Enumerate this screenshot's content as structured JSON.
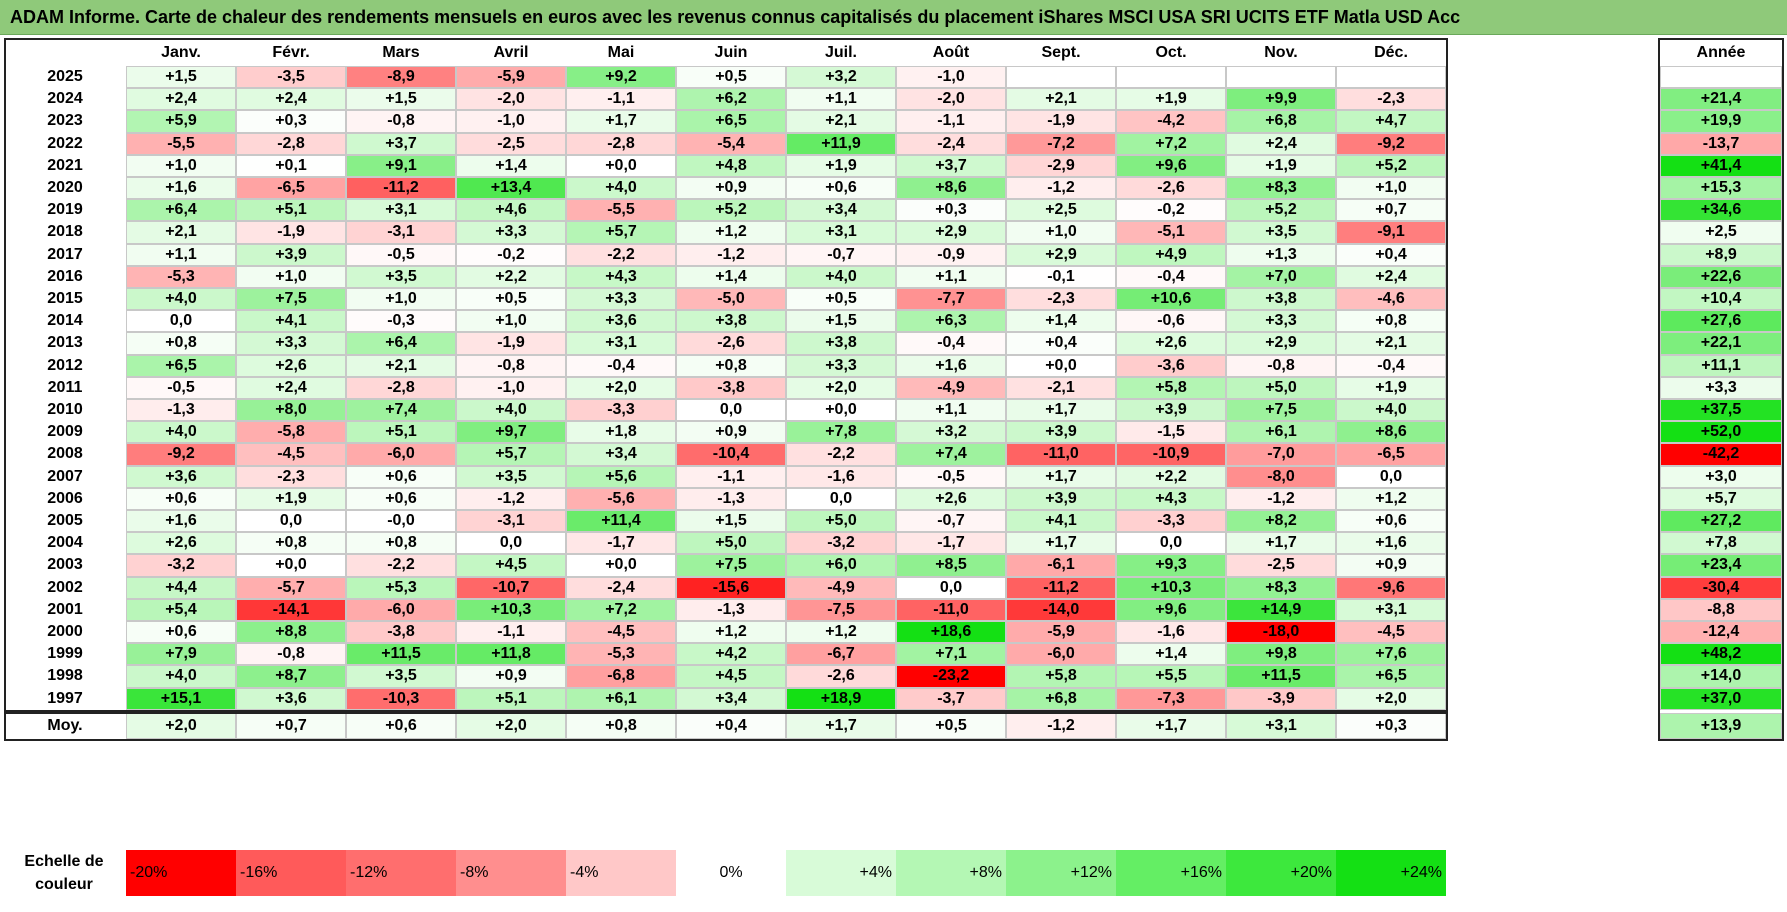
{
  "title": "ADAM Informe. Carte de chaleur des rendements mensuels en euros avec les revenus connus capitalisés du placement iShares MSCI USA SRI UCITS ETF Matla USD Acc",
  "chart_data": {
    "type": "heatmap",
    "title": "ADAM Informe. Carte de chaleur des rendements mensuels en euros avec les revenus connus capitalisés du placement iShares MSCI USA SRI UCITS ETF Matla USD Acc",
    "columns": [
      "Janv.",
      "Févr.",
      "Mars",
      "Avril",
      "Mai",
      "Juin",
      "Juil.",
      "Août",
      "Sept.",
      "Oct.",
      "Nov.",
      "Déc."
    ],
    "annual_header": "Année",
    "average_label": "Moy.",
    "rows": [
      {
        "year": "2025",
        "months": [
          "+1,5",
          "-3,5",
          "-8,9",
          "-5,9",
          "+9,2",
          "+0,5",
          "+3,2",
          "-1,0",
          "",
          "",
          "",
          ""
        ],
        "annual": ""
      },
      {
        "year": "2024",
        "months": [
          "+2,4",
          "+2,4",
          "+1,5",
          "-2,0",
          "-1,1",
          "+6,2",
          "+1,1",
          "-2,0",
          "+2,1",
          "+1,9",
          "+9,9",
          "-2,3"
        ],
        "annual": "+21,4"
      },
      {
        "year": "2023",
        "months": [
          "+5,9",
          "+0,3",
          "-0,8",
          "-1,0",
          "+1,7",
          "+6,5",
          "+2,1",
          "-1,1",
          "-1,9",
          "-4,2",
          "+6,8",
          "+4,7"
        ],
        "annual": "+19,9"
      },
      {
        "year": "2022",
        "months": [
          "-5,5",
          "-2,8",
          "+3,7",
          "-2,5",
          "-2,8",
          "-5,4",
          "+11,9",
          "-2,4",
          "-7,2",
          "+7,2",
          "+2,4",
          "-9,2"
        ],
        "annual": "-13,7"
      },
      {
        "year": "2021",
        "months": [
          "+1,0",
          "+0,1",
          "+9,1",
          "+1,4",
          "+0,0",
          "+4,8",
          "+1,9",
          "+3,7",
          "-2,9",
          "+9,6",
          "+1,9",
          "+5,2"
        ],
        "annual": "+41,4"
      },
      {
        "year": "2020",
        "months": [
          "+1,6",
          "-6,5",
          "-11,2",
          "+13,4",
          "+4,0",
          "+0,9",
          "+0,6",
          "+8,6",
          "-1,2",
          "-2,6",
          "+8,3",
          "+1,0"
        ],
        "annual": "+15,3"
      },
      {
        "year": "2019",
        "months": [
          "+6,4",
          "+5,1",
          "+3,1",
          "+4,6",
          "-5,5",
          "+5,2",
          "+3,4",
          "+0,3",
          "+2,5",
          "-0,2",
          "+5,2",
          "+0,7"
        ],
        "annual": "+34,6"
      },
      {
        "year": "2018",
        "months": [
          "+2,1",
          "-1,9",
          "-3,1",
          "+3,3",
          "+5,7",
          "+1,2",
          "+3,1",
          "+2,9",
          "+1,0",
          "-5,1",
          "+3,5",
          "-9,1"
        ],
        "annual": "+2,5"
      },
      {
        "year": "2017",
        "months": [
          "+1,1",
          "+3,9",
          "-0,5",
          "-0,2",
          "-2,2",
          "-1,2",
          "-0,7",
          "-0,9",
          "+2,9",
          "+4,9",
          "+1,3",
          "+0,4"
        ],
        "annual": "+8,9"
      },
      {
        "year": "2016",
        "months": [
          "-5,3",
          "+1,0",
          "+3,5",
          "+2,2",
          "+4,3",
          "+1,4",
          "+4,0",
          "+1,1",
          "-0,1",
          "-0,4",
          "+7,0",
          "+2,4"
        ],
        "annual": "+22,6"
      },
      {
        "year": "2015",
        "months": [
          "+4,0",
          "+7,5",
          "+1,0",
          "+0,5",
          "+3,3",
          "-5,0",
          "+0,5",
          "-7,7",
          "-2,3",
          "+10,6",
          "+3,8",
          "-4,6"
        ],
        "annual": "+10,4"
      },
      {
        "year": "2014",
        "months": [
          "0,0",
          "+4,1",
          "-0,3",
          "+1,0",
          "+3,6",
          "+3,8",
          "+1,5",
          "+6,3",
          "+1,4",
          "-0,6",
          "+3,3",
          "+0,8"
        ],
        "annual": "+27,6"
      },
      {
        "year": "2013",
        "months": [
          "+0,8",
          "+3,3",
          "+6,4",
          "-1,9",
          "+3,1",
          "-2,6",
          "+3,8",
          "-0,4",
          "+0,4",
          "+2,6",
          "+2,9",
          "+2,1"
        ],
        "annual": "+22,1"
      },
      {
        "year": "2012",
        "months": [
          "+6,5",
          "+2,6",
          "+2,1",
          "-0,8",
          "-0,4",
          "+0,8",
          "+3,3",
          "+1,6",
          "+0,0",
          "-3,6",
          "-0,8",
          "-0,4"
        ],
        "annual": "+11,1"
      },
      {
        "year": "2011",
        "months": [
          "-0,5",
          "+2,4",
          "-2,8",
          "-1,0",
          "+2,0",
          "-3,8",
          "+2,0",
          "-4,9",
          "-2,1",
          "+5,8",
          "+5,0",
          "+1,9"
        ],
        "annual": "+3,3"
      },
      {
        "year": "2010",
        "months": [
          "-1,3",
          "+8,0",
          "+7,4",
          "+4,0",
          "-3,3",
          "0,0",
          "+0,0",
          "+1,1",
          "+1,7",
          "+3,9",
          "+7,5",
          "+4,0"
        ],
        "annual": "+37,5"
      },
      {
        "year": "2009",
        "months": [
          "+4,0",
          "-5,8",
          "+5,1",
          "+9,7",
          "+1,8",
          "+0,9",
          "+7,8",
          "+3,2",
          "+3,9",
          "-1,5",
          "+6,1",
          "+8,6"
        ],
        "annual": "+52,0"
      },
      {
        "year": "2008",
        "months": [
          "-9,2",
          "-4,5",
          "-6,0",
          "+5,7",
          "+3,4",
          "-10,4",
          "-2,2",
          "+7,4",
          "-11,0",
          "-10,9",
          "-7,0",
          "-6,5"
        ],
        "annual": "-42,2"
      },
      {
        "year": "2007",
        "months": [
          "+3,6",
          "-2,3",
          "+0,6",
          "+3,5",
          "+5,6",
          "-1,1",
          "-1,6",
          "-0,5",
          "+1,7",
          "+2,2",
          "-8,0",
          "0,0"
        ],
        "annual": "+3,0"
      },
      {
        "year": "2006",
        "months": [
          "+0,6",
          "+1,9",
          "+0,6",
          "-1,2",
          "-5,6",
          "-1,3",
          "0,0",
          "+2,6",
          "+3,9",
          "+4,3",
          "-1,2",
          "+1,2"
        ],
        "annual": "+5,7"
      },
      {
        "year": "2005",
        "months": [
          "+1,6",
          "0,0",
          "-0,0",
          "-3,1",
          "+11,4",
          "+1,5",
          "+5,0",
          "-0,7",
          "+4,1",
          "-3,3",
          "+8,2",
          "+0,6"
        ],
        "annual": "+27,2"
      },
      {
        "year": "2004",
        "months": [
          "+2,6",
          "+0,8",
          "+0,8",
          "0,0",
          "-1,7",
          "+5,0",
          "-3,2",
          "-1,7",
          "+1,7",
          "0,0",
          "+1,7",
          "+1,6"
        ],
        "annual": "+7,8"
      },
      {
        "year": "2003",
        "months": [
          "-3,2",
          "+0,0",
          "-2,2",
          "+4,5",
          "+0,0",
          "+7,5",
          "+6,0",
          "+8,5",
          "-6,1",
          "+9,3",
          "-2,5",
          "+0,9"
        ],
        "annual": "+23,4"
      },
      {
        "year": "2002",
        "months": [
          "+4,4",
          "-5,7",
          "+5,3",
          "-10,7",
          "-2,4",
          "-15,6",
          "-4,9",
          "0,0",
          "-11,2",
          "+10,3",
          "+8,3",
          "-9,6"
        ],
        "annual": "-30,4"
      },
      {
        "year": "2001",
        "months": [
          "+5,4",
          "-14,1",
          "-6,0",
          "+10,3",
          "+7,2",
          "-1,3",
          "-7,5",
          "-11,0",
          "-14,0",
          "+9,6",
          "+14,9",
          "+3,1"
        ],
        "annual": "-8,8"
      },
      {
        "year": "2000",
        "months": [
          "+0,6",
          "+8,8",
          "-3,8",
          "-1,1",
          "-4,5",
          "+1,2",
          "+1,2",
          "+18,6",
          "-5,9",
          "-1,6",
          "-18,0",
          "-4,5"
        ],
        "annual": "-12,4"
      },
      {
        "year": "1999",
        "months": [
          "+7,9",
          "-0,8",
          "+11,5",
          "+11,8",
          "-5,3",
          "+4,2",
          "-6,7",
          "+7,1",
          "-6,0",
          "+1,4",
          "+9,8",
          "+7,6"
        ],
        "annual": "+48,2"
      },
      {
        "year": "1998",
        "months": [
          "+4,0",
          "+8,7",
          "+3,5",
          "+0,9",
          "-6,8",
          "+4,5",
          "-2,6",
          "-23,2",
          "+5,8",
          "+5,5",
          "+11,5",
          "+6,5"
        ],
        "annual": "+14,0"
      },
      {
        "year": "1997",
        "months": [
          "+15,1",
          "+3,6",
          "-10,3",
          "+5,1",
          "+6,1",
          "+3,4",
          "+18,9",
          "-3,7",
          "+6,8",
          "-7,3",
          "-3,9",
          "+2,0"
        ],
        "annual": "+37,0"
      }
    ],
    "average": {
      "months": [
        "+2,0",
        "+0,7",
        "+0,6",
        "+2,0",
        "+0,8",
        "+0,4",
        "+1,7",
        "+0,5",
        "-1,2",
        "+1,7",
        "+3,1",
        "+0,3"
      ],
      "annual": "+13,9"
    },
    "color_scale": {
      "label": "Echelle de couleur",
      "steps": [
        "-20%",
        "-16%",
        "-12%",
        "-8%",
        "-4%",
        "0%",
        "+4%",
        "+8%",
        "+12%",
        "+16%",
        "+20%",
        "+24%"
      ],
      "colors": [
        "#ff0000",
        "#ff5a5a",
        "#ff6e6e",
        "#ff8e8e",
        "#ffc8c8",
        "#ffffff",
        "#d8fbd8",
        "#b4f7b4",
        "#8cf28c",
        "#64ee64",
        "#3de83d",
        "#14e014"
      ]
    },
    "colors": {
      "title_bar": "#8fc97a",
      "negative_max": "#ff0000",
      "neutral": "#ffffff",
      "positive_max": "#14e014"
    }
  }
}
